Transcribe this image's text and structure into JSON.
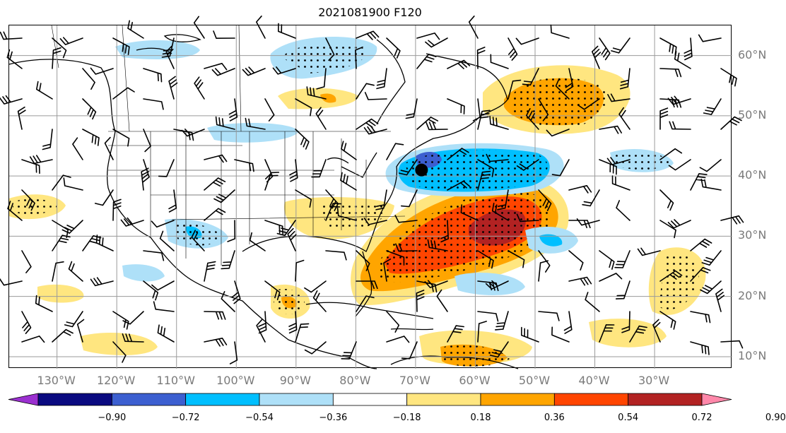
{
  "title": "2021081900 F120",
  "latitude_labels": [
    {
      "label": "60°N",
      "lat": 60
    },
    {
      "label": "50°N",
      "lat": 50
    },
    {
      "label": "40°N",
      "lat": 40
    },
    {
      "label": "30°N",
      "lat": 30
    },
    {
      "label": "20°N",
      "lat": 20
    },
    {
      "label": "10°N",
      "lat": 10
    }
  ],
  "longitude_labels": [
    {
      "label": "130°W",
      "lon": -130
    },
    {
      "label": "120°W",
      "lon": -120
    },
    {
      "label": "110°W",
      "lon": -110
    },
    {
      "label": "100°W",
      "lon": -100
    },
    {
      "label": "90°W",
      "lon": -90
    },
    {
      "label": "80°W",
      "lon": -80
    },
    {
      "label": "70°W",
      "lon": -70
    },
    {
      "label": "60°W",
      "lon": -60
    },
    {
      "label": "50°W",
      "lon": -50
    },
    {
      "label": "40°W",
      "lon": -40
    },
    {
      "label": "30°W",
      "lon": -30
    }
  ],
  "map_extent": {
    "lon": [
      -138,
      -17
    ],
    "lat": [
      8,
      65
    ]
  },
  "colorbar": {
    "ticks": [
      "−0.90",
      "−0.72",
      "−0.54",
      "−0.36",
      "−0.18",
      "0.18",
      "0.36",
      "0.54",
      "0.72",
      "0.90"
    ],
    "colors": [
      "#9b30d0",
      "#0a0a80",
      "#3c5fd0",
      "#00bfff",
      "#aee0f8",
      "#ffffff",
      "#ffe680",
      "#ffa500",
      "#ff4500",
      "#b22222",
      "#ff88aa"
    ]
  },
  "marker": {
    "lon": -69,
    "lat": 41
  }
}
